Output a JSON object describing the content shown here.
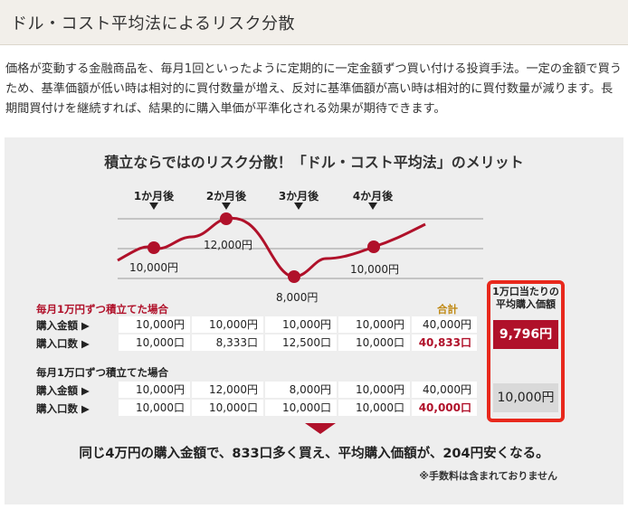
{
  "header": {
    "title": "ドル・コスト平均法によるリスク分散"
  },
  "intro": {
    "text": "価格が変動する金融商品を、毎月1回といったように定期的に一定金額ずつ買い付ける投資手法。一定の金額で買うため、基準価額が低い時は相対的に買付数量が増え、反対に基準価額が高い時は相対的に買付数量が減ります。長期間買付けを継続すれば、結果的に購入単価が平準化される効果が期待できます。"
  },
  "figure": {
    "title": "積立ならではのリスク分散！「ドル・コスト平均法」のメリット",
    "months": [
      "1か月後",
      "2か月後",
      "3か月後",
      "4か月後"
    ],
    "price_points": [
      {
        "label": "10,000円",
        "value": 10000
      },
      {
        "label": "12,000円",
        "value": 12000
      },
      {
        "label": "8,000円",
        "value": 8000
      },
      {
        "label": "10,000円",
        "value": 10000
      }
    ],
    "colors": {
      "line": "#b0112a",
      "box_border": "#e8281c",
      "total": "#c08a16"
    }
  },
  "fixed_amount": {
    "label": "毎月1万円ずつ積立てた場合",
    "total_header": "合計",
    "purchase_amount": {
      "label": "購入金額 ▶",
      "values": [
        "10,000円",
        "10,000円",
        "10,000円",
        "10,000円"
      ],
      "total": "40,000円"
    },
    "purchase_units": {
      "label": "購入口数 ▶",
      "values": [
        "10,000口",
        "8,333口",
        "12,500口",
        "10,000口"
      ],
      "total": "40,833口"
    }
  },
  "fixed_units": {
    "label": "毎月1万口ずつ積立てた場合",
    "purchase_amount": {
      "label": "購入金額 ▶",
      "values": [
        "10,000円",
        "12,000円",
        "8,000円",
        "10,000円"
      ],
      "total": "40,000円"
    },
    "purchase_units": {
      "label": "購入口数 ▶",
      "values": [
        "10,000口",
        "10,000口",
        "10,000口",
        "10,000口"
      ],
      "total": "40,000口"
    }
  },
  "average": {
    "header_line1": "1万口当たりの",
    "header_line2": "平均購入価額",
    "fixed_amount_value": "9,796円",
    "fixed_units_value": "10,000円"
  },
  "conclusion": "同じ4万円の購入金額で、833口多く買え、平均購入価額が、204円安くなる。",
  "note": "※手数料は含まれておりません"
}
